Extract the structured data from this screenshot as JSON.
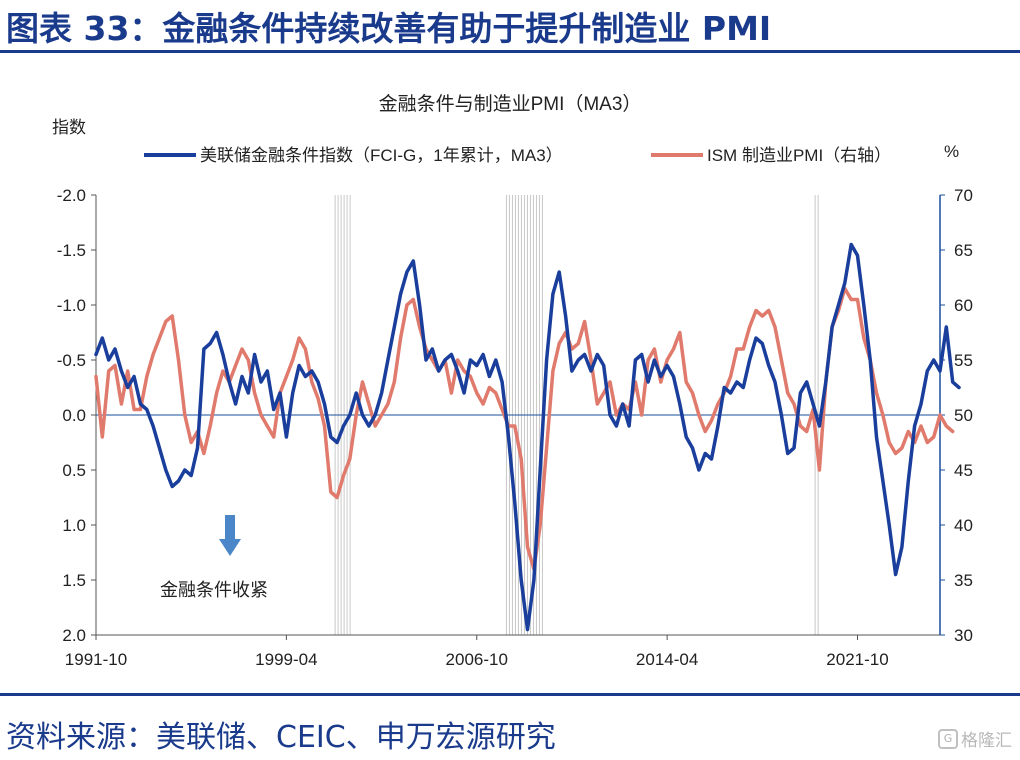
{
  "header": {
    "title": "图表 33：金融条件持续改善有助于提升制造业 PMI"
  },
  "footer": {
    "source": "资料来源：美联储、CEIC、申万宏源研究",
    "watermark": "格隆汇"
  },
  "chart_data": {
    "type": "line",
    "title": "金融条件与制造业PMI（MA3）",
    "left_axis_unit": "指数",
    "right_axis_unit": "%",
    "left_ylim": [
      2.0,
      -2.0
    ],
    "left_inverted": true,
    "left_ticks": [
      "-2.0",
      "-1.5",
      "-1.0",
      "-0.5",
      "0.0",
      "0.5",
      "1.0",
      "1.5",
      "2.0"
    ],
    "right_ylim": [
      30,
      70
    ],
    "right_ticks": [
      "70",
      "65",
      "60",
      "55",
      "50",
      "45",
      "40",
      "35",
      "30"
    ],
    "x_ticks": [
      "1991-10",
      "1999-04",
      "2006-10",
      "2014-04",
      "2021-10"
    ],
    "x_range": [
      1991.75,
      2025.0
    ],
    "grid": false,
    "legend_position": "top",
    "annotation": "金融条件收紧",
    "recessions": [
      [
        2001.17,
        2001.83
      ],
      [
        2007.92,
        2009.42
      ],
      [
        2020.08,
        2020.25
      ]
    ],
    "series": [
      {
        "name": "美联储金融条件指数（FCI-G，1年累计，MA3）",
        "axis": "left",
        "color": "#1a3e9c",
        "points": [
          [
            1991.75,
            -0.55
          ],
          [
            1992.0,
            -0.7
          ],
          [
            1992.25,
            -0.5
          ],
          [
            1992.5,
            -0.6
          ],
          [
            1992.75,
            -0.4
          ],
          [
            1993.0,
            -0.25
          ],
          [
            1993.25,
            -0.35
          ],
          [
            1993.5,
            -0.1
          ],
          [
            1993.75,
            -0.05
          ],
          [
            1994.0,
            0.1
          ],
          [
            1994.5,
            0.5
          ],
          [
            1994.75,
            0.65
          ],
          [
            1995.0,
            0.6
          ],
          [
            1995.25,
            0.5
          ],
          [
            1995.5,
            0.55
          ],
          [
            1995.75,
            0.3
          ],
          [
            1996.0,
            -0.6
          ],
          [
            1996.25,
            -0.65
          ],
          [
            1996.5,
            -0.75
          ],
          [
            1996.75,
            -0.55
          ],
          [
            1997.0,
            -0.3
          ],
          [
            1997.25,
            -0.1
          ],
          [
            1997.5,
            -0.35
          ],
          [
            1997.75,
            -0.2
          ],
          [
            1998.0,
            -0.55
          ],
          [
            1998.25,
            -0.3
          ],
          [
            1998.5,
            -0.4
          ],
          [
            1998.75,
            -0.05
          ],
          [
            1999.0,
            -0.2
          ],
          [
            1999.25,
            0.2
          ],
          [
            1999.5,
            -0.2
          ],
          [
            1999.75,
            -0.45
          ],
          [
            2000.0,
            -0.35
          ],
          [
            2000.25,
            -0.4
          ],
          [
            2000.5,
            -0.3
          ],
          [
            2000.75,
            -0.1
          ],
          [
            2001.0,
            0.2
          ],
          [
            2001.25,
            0.25
          ],
          [
            2001.5,
            0.1
          ],
          [
            2001.75,
            0.0
          ],
          [
            2002.0,
            -0.2
          ],
          [
            2002.25,
            0.0
          ],
          [
            2002.5,
            0.1
          ],
          [
            2002.75,
            0.0
          ],
          [
            2003.0,
            -0.2
          ],
          [
            2003.25,
            -0.5
          ],
          [
            2003.5,
            -0.8
          ],
          [
            2003.75,
            -1.1
          ],
          [
            2004.0,
            -1.3
          ],
          [
            2004.25,
            -1.4
          ],
          [
            2004.5,
            -1.0
          ],
          [
            2004.75,
            -0.5
          ],
          [
            2005.0,
            -0.6
          ],
          [
            2005.25,
            -0.4
          ],
          [
            2005.5,
            -0.5
          ],
          [
            2005.75,
            -0.55
          ],
          [
            2006.0,
            -0.4
          ],
          [
            2006.25,
            -0.2
          ],
          [
            2006.5,
            -0.5
          ],
          [
            2006.75,
            -0.45
          ],
          [
            2007.0,
            -0.55
          ],
          [
            2007.25,
            -0.35
          ],
          [
            2007.5,
            -0.5
          ],
          [
            2007.75,
            -0.3
          ],
          [
            2008.0,
            0.2
          ],
          [
            2008.25,
            0.8
          ],
          [
            2008.5,
            1.5
          ],
          [
            2008.75,
            1.95
          ],
          [
            2009.0,
            1.5
          ],
          [
            2009.25,
            0.5
          ],
          [
            2009.5,
            -0.5
          ],
          [
            2009.75,
            -1.1
          ],
          [
            2010.0,
            -1.3
          ],
          [
            2010.25,
            -0.9
          ],
          [
            2010.5,
            -0.4
          ],
          [
            2010.75,
            -0.5
          ],
          [
            2011.0,
            -0.55
          ],
          [
            2011.25,
            -0.4
          ],
          [
            2011.5,
            -0.55
          ],
          [
            2011.75,
            -0.45
          ],
          [
            2012.0,
            0.0
          ],
          [
            2012.25,
            0.1
          ],
          [
            2012.5,
            -0.1
          ],
          [
            2012.75,
            0.1
          ],
          [
            2013.0,
            -0.5
          ],
          [
            2013.25,
            -0.55
          ],
          [
            2013.5,
            -0.3
          ],
          [
            2013.75,
            -0.5
          ],
          [
            2014.0,
            -0.35
          ],
          [
            2014.25,
            -0.45
          ],
          [
            2014.5,
            -0.35
          ],
          [
            2014.75,
            -0.1
          ],
          [
            2015.0,
            0.2
          ],
          [
            2015.25,
            0.3
          ],
          [
            2015.5,
            0.5
          ],
          [
            2015.75,
            0.35
          ],
          [
            2016.0,
            0.4
          ],
          [
            2016.25,
            0.1
          ],
          [
            2016.5,
            -0.25
          ],
          [
            2016.75,
            -0.2
          ],
          [
            2017.0,
            -0.3
          ],
          [
            2017.25,
            -0.25
          ],
          [
            2017.5,
            -0.5
          ],
          [
            2017.75,
            -0.7
          ],
          [
            2018.0,
            -0.65
          ],
          [
            2018.25,
            -0.45
          ],
          [
            2018.5,
            -0.3
          ],
          [
            2018.75,
            0.0
          ],
          [
            2019.0,
            0.35
          ],
          [
            2019.25,
            0.3
          ],
          [
            2019.5,
            -0.2
          ],
          [
            2019.75,
            -0.3
          ],
          [
            2020.0,
            -0.1
          ],
          [
            2020.25,
            0.1
          ],
          [
            2020.5,
            -0.3
          ],
          [
            2020.75,
            -0.8
          ],
          [
            2021.0,
            -1.0
          ],
          [
            2021.25,
            -1.2
          ],
          [
            2021.5,
            -1.55
          ],
          [
            2021.75,
            -1.45
          ],
          [
            2022.0,
            -1.0
          ],
          [
            2022.25,
            -0.5
          ],
          [
            2022.5,
            0.2
          ],
          [
            2022.75,
            0.6
          ],
          [
            2023.0,
            1.0
          ],
          [
            2023.25,
            1.45
          ],
          [
            2023.5,
            1.2
          ],
          [
            2023.75,
            0.6
          ],
          [
            2024.0,
            0.1
          ],
          [
            2024.25,
            -0.1
          ],
          [
            2024.5,
            -0.4
          ],
          [
            2024.75,
            -0.5
          ],
          [
            2025.0,
            -0.4
          ],
          [
            2025.25,
            -0.8
          ],
          [
            2025.5,
            -0.3
          ],
          [
            2025.75,
            -0.25
          ]
        ]
      },
      {
        "name": "ISM 制造业PMI（右轴）",
        "axis": "right",
        "color": "#e07a6c",
        "points": [
          [
            1991.75,
            53.5
          ],
          [
            1992.0,
            48
          ],
          [
            1992.25,
            54
          ],
          [
            1992.5,
            54.5
          ],
          [
            1992.75,
            51
          ],
          [
            1993.0,
            54
          ],
          [
            1993.25,
            50.5
          ],
          [
            1993.5,
            50.5
          ],
          [
            1993.75,
            53.5
          ],
          [
            1994.0,
            55.5
          ],
          [
            1994.25,
            57
          ],
          [
            1994.5,
            58.5
          ],
          [
            1994.75,
            59
          ],
          [
            1995.0,
            55
          ],
          [
            1995.25,
            50
          ],
          [
            1995.5,
            47.5
          ],
          [
            1995.75,
            48.5
          ],
          [
            1996.0,
            46.5
          ],
          [
            1996.25,
            49
          ],
          [
            1996.5,
            52
          ],
          [
            1996.75,
            54
          ],
          [
            1997.0,
            53
          ],
          [
            1997.25,
            54.5
          ],
          [
            1997.5,
            56
          ],
          [
            1997.75,
            55
          ],
          [
            1998.0,
            52
          ],
          [
            1998.25,
            50
          ],
          [
            1998.5,
            49
          ],
          [
            1998.75,
            48
          ],
          [
            1999.0,
            52
          ],
          [
            1999.25,
            53.5
          ],
          [
            1999.5,
            55
          ],
          [
            1999.75,
            57
          ],
          [
            2000.0,
            56
          ],
          [
            2000.25,
            53
          ],
          [
            2000.5,
            51.5
          ],
          [
            2000.75,
            49
          ],
          [
            2001.0,
            43
          ],
          [
            2001.25,
            42.5
          ],
          [
            2001.5,
            44.5
          ],
          [
            2001.75,
            46
          ],
          [
            2002.0,
            50
          ],
          [
            2002.25,
            53
          ],
          [
            2002.5,
            51
          ],
          [
            2002.75,
            49
          ],
          [
            2003.0,
            50
          ],
          [
            2003.25,
            51
          ],
          [
            2003.5,
            53
          ],
          [
            2003.75,
            57
          ],
          [
            2004.0,
            60
          ],
          [
            2004.25,
            60.5
          ],
          [
            2004.5,
            58
          ],
          [
            2004.75,
            56
          ],
          [
            2005.0,
            55
          ],
          [
            2005.25,
            54
          ],
          [
            2005.5,
            55
          ],
          [
            2005.75,
            52
          ],
          [
            2006.0,
            55
          ],
          [
            2006.25,
            54
          ],
          [
            2006.5,
            53.5
          ],
          [
            2006.75,
            52
          ],
          [
            2007.0,
            51
          ],
          [
            2007.25,
            52.5
          ],
          [
            2007.5,
            52
          ],
          [
            2007.75,
            50.5
          ],
          [
            2008.0,
            49
          ],
          [
            2008.25,
            49
          ],
          [
            2008.5,
            46
          ],
          [
            2008.75,
            38
          ],
          [
            2009.0,
            36
          ],
          [
            2009.25,
            40
          ],
          [
            2009.5,
            47
          ],
          [
            2009.75,
            54
          ],
          [
            2010.0,
            56.5
          ],
          [
            2010.25,
            57.5
          ],
          [
            2010.5,
            56
          ],
          [
            2010.75,
            56.5
          ],
          [
            2011.0,
            58.5
          ],
          [
            2011.25,
            55
          ],
          [
            2011.5,
            51
          ],
          [
            2011.75,
            52
          ],
          [
            2012.0,
            53
          ],
          [
            2012.25,
            50
          ],
          [
            2012.5,
            51
          ],
          [
            2012.75,
            50.5
          ],
          [
            2013.0,
            53
          ],
          [
            2013.25,
            50
          ],
          [
            2013.5,
            55
          ],
          [
            2013.75,
            56
          ],
          [
            2014.0,
            53
          ],
          [
            2014.25,
            55
          ],
          [
            2014.5,
            56
          ],
          [
            2014.75,
            57.5
          ],
          [
            2015.0,
            53
          ],
          [
            2015.25,
            52
          ],
          [
            2015.5,
            50
          ],
          [
            2015.75,
            48.5
          ],
          [
            2016.0,
            49.5
          ],
          [
            2016.25,
            51
          ],
          [
            2016.5,
            52
          ],
          [
            2016.75,
            53.5
          ],
          [
            2017.0,
            56
          ],
          [
            2017.25,
            56
          ],
          [
            2017.5,
            58
          ],
          [
            2017.75,
            59.5
          ],
          [
            2018.0,
            59
          ],
          [
            2018.25,
            59.5
          ],
          [
            2018.5,
            58
          ],
          [
            2018.75,
            55
          ],
          [
            2019.0,
            52
          ],
          [
            2019.25,
            51
          ],
          [
            2019.5,
            49
          ],
          [
            2019.75,
            48.5
          ],
          [
            2020.0,
            50.5
          ],
          [
            2020.25,
            45
          ],
          [
            2020.5,
            53
          ],
          [
            2020.75,
            58
          ],
          [
            2021.0,
            59.5
          ],
          [
            2021.25,
            61.5
          ],
          [
            2021.5,
            60.5
          ],
          [
            2021.75,
            60.5
          ],
          [
            2022.0,
            57
          ],
          [
            2022.25,
            55
          ],
          [
            2022.5,
            52
          ],
          [
            2022.75,
            50
          ],
          [
            2023.0,
            47.5
          ],
          [
            2023.25,
            46.5
          ],
          [
            2023.5,
            47
          ],
          [
            2023.75,
            48.5
          ],
          [
            2024.0,
            47.5
          ],
          [
            2024.25,
            49
          ],
          [
            2024.5,
            47.5
          ],
          [
            2024.75,
            48
          ],
          [
            2025.0,
            50
          ],
          [
            2025.25,
            49
          ],
          [
            2025.5,
            48.5
          ]
        ]
      }
    ]
  }
}
